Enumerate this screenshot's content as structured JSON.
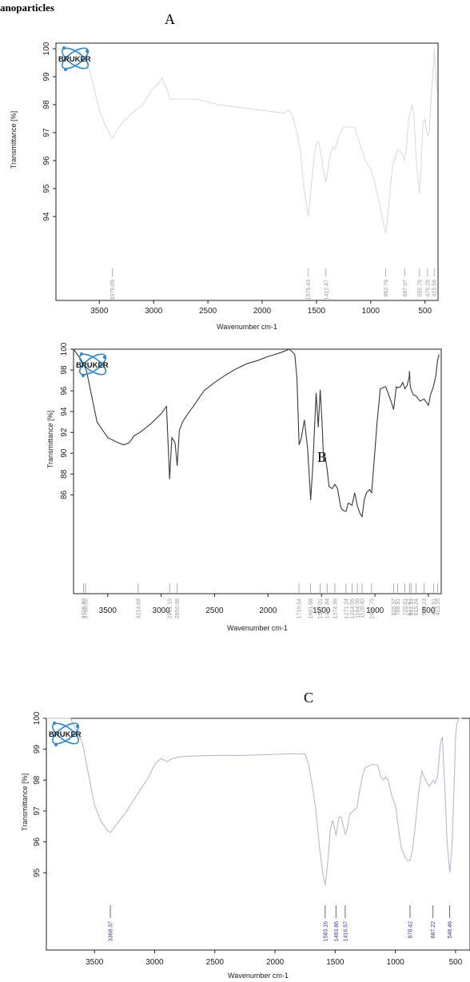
{
  "header": {
    "title": "anoparticles"
  },
  "logo": {
    "text": "BRUKER",
    "icon": "atom-icon",
    "color": "#2a8ad8"
  },
  "charts": [
    {
      "letter": "A",
      "type": "line",
      "xlabel": "Wavenumber cm-1",
      "ylabel": "Transmittance [%]",
      "xlim": [
        3900,
        380
      ],
      "ylim": [
        91,
        100.2
      ],
      "x_ticks": [
        3500,
        3000,
        2500,
        2000,
        1500,
        1000,
        500
      ],
      "y_ticks": [
        94,
        95,
        96,
        97,
        98,
        99,
        100
      ],
      "line_color": "#dcdcdc",
      "peak_color": "#9a9a9a",
      "series": [
        {
          "x": [
            3900,
            3800,
            3700,
            3600,
            3500,
            3450,
            3400,
            3379,
            3350,
            3300,
            3200,
            3100,
            3000,
            2950,
            2920,
            2900,
            2880,
            2850,
            2800,
            2700,
            2600,
            2500,
            2400,
            2300,
            2200,
            2100,
            2000,
            1900,
            1800,
            1750,
            1720,
            1700,
            1680,
            1650,
            1620,
            1600,
            1575,
            1550,
            1520,
            1500,
            1480,
            1450,
            1430,
            1412,
            1400,
            1380,
            1350,
            1330,
            1300,
            1280,
            1250,
            1200,
            1150,
            1100,
            1050,
            1000,
            950,
            900,
            880,
            863,
            850,
            820,
            800,
            750,
            720,
            700,
            687,
            670,
            650,
            620,
            600,
            580,
            560,
            550,
            540,
            520,
            500,
            490,
            476,
            460,
            440,
            420,
            415,
            400,
            390
          ],
          "y": [
            100,
            100,
            100,
            99.4,
            97.8,
            97.3,
            96.9,
            96.8,
            97.0,
            97.3,
            97.7,
            98.0,
            98.6,
            98.8,
            98.95,
            98.7,
            98.6,
            98.2,
            98.2,
            98.2,
            98.2,
            98.1,
            98.0,
            97.95,
            97.9,
            97.85,
            97.8,
            97.75,
            97.7,
            97.8,
            97.6,
            97.3,
            97.0,
            96.4,
            95.2,
            94.6,
            94.0,
            95.0,
            96.2,
            96.6,
            96.7,
            96.0,
            95.5,
            95.25,
            95.5,
            96.1,
            96.5,
            96.4,
            96.8,
            97.0,
            97.2,
            97.2,
            97.2,
            96.6,
            96.0,
            95.7,
            95.0,
            94.1,
            93.7,
            93.4,
            93.8,
            95.0,
            95.8,
            96.4,
            96.3,
            96.2,
            96.0,
            96.5,
            97.5,
            98.0,
            97.5,
            96.0,
            95.2,
            94.8,
            95.5,
            97.3,
            97.5,
            97.2,
            96.9,
            97.0,
            98.5,
            99.5,
            100.0,
            99.0,
            98.5
          ]
        }
      ],
      "peaks": [
        3379.09,
        1575.43,
        1412.47,
        862.78,
        687.07,
        550.75,
        476.28,
        415.56
      ],
      "peak_labels": [
        "3379.09",
        "1575.43",
        "1412.47",
        "862.78",
        "687.07",
        "550.75",
        "476.28",
        "415.56"
      ]
    },
    {
      "letter": "B",
      "type": "line",
      "xlabel": "Wavenumber cm-1",
      "ylabel": "Transmittance [%]",
      "xlim": [
        3820,
        380
      ],
      "ylim": [
        76.5,
        100
      ],
      "x_ticks": [
        3500,
        3000,
        2500,
        2000,
        1500,
        1000,
        500
      ],
      "y_ticks": [
        86,
        88,
        90,
        92,
        94,
        96,
        98,
        100
      ],
      "line_color": "#3a3a3a",
      "peak_color": "#9a9a9a",
      "series": [
        {
          "x": [
            3820,
            3750,
            3700,
            3650,
            3600,
            3500,
            3400,
            3350,
            3300,
            3250,
            3200,
            3100,
            3000,
            2950,
            2921,
            2900,
            2870,
            2850,
            2830,
            2800,
            2750,
            2700,
            2600,
            2500,
            2400,
            2300,
            2200,
            2100,
            2000,
            1900,
            1800,
            1750,
            1730,
            1710,
            1690,
            1660,
            1630,
            1601,
            1580,
            1550,
            1530,
            1512,
            1495,
            1480,
            1465,
            1448,
            1430,
            1400,
            1375,
            1350,
            1320,
            1300,
            1271,
            1250,
            1214,
            1190,
            1164,
            1140,
            1120,
            1100,
            1080,
            1050,
            1031,
            1010,
            980,
            950,
            900,
            850,
            826,
            800,
            789,
            760,
            740,
            720,
            700,
            680,
            677,
            670,
            662,
            640,
            615,
            580,
            540,
            520,
            500,
            480,
            450,
            430,
            413,
            400
          ],
          "y": [
            100,
            99,
            98,
            95.5,
            93,
            91.5,
            91,
            90.8,
            91,
            91.7,
            92,
            92.8,
            93.8,
            94.5,
            87.5,
            91.5,
            91,
            88.8,
            92.2,
            93,
            93.8,
            94.5,
            96,
            96.8,
            97.5,
            98.1,
            98.6,
            98.9,
            99.3,
            99.6,
            100,
            99.5,
            97.2,
            90.8,
            91.4,
            93.2,
            90.5,
            85.5,
            89,
            95.8,
            92.5,
            96.1,
            93,
            89.2,
            89.6,
            88.5,
            86.8,
            86.6,
            87,
            86.6,
            84.8,
            84.5,
            84.4,
            85.2,
            85,
            86.2,
            84.9,
            84.2,
            83.9,
            85.5,
            86.2,
            86.5,
            86.2,
            89,
            93,
            96.2,
            96.4,
            95,
            94.2,
            96.4,
            96.3,
            96.4,
            96.8,
            96.2,
            96.5,
            97.3,
            97.9,
            96.5,
            96.1,
            95.6,
            95.5,
            95,
            95.2,
            94.9,
            94.6,
            95.6,
            96.5,
            97.5,
            99,
            99.5
          ]
        }
      ],
      "peaks": [
        3726.8,
        3708.02,
        3214.68,
        2921.19,
        2850.08,
        1710.54,
        1601.68,
        1512.01,
        1447.84,
        1374.99,
        1271.24,
        1214.05,
        1164.08,
        1120.4,
        1031.75,
        826.37,
        788.91,
        720.01,
        677.67,
        662.13,
        615.24,
        540.23,
        449.91,
        413.16
      ],
      "peak_labels": [
        "3726.80",
        "3708.02",
        "3214.68",
        "2921.19",
        "2850.08",
        "1710.54",
        "1601.68",
        "1512.01",
        "1447.84",
        "1374.99",
        "1271.24",
        "1214.05",
        "1164.08",
        "1120.40",
        "1031.75",
        "826.37",
        "788.91",
        "720.01",
        "677.67",
        "662.13",
        "615.24",
        "540.23",
        "449.91",
        "413.16"
      ]
    },
    {
      "letter": "C",
      "type": "line",
      "xlabel": "Wavenumber cm-1",
      "ylabel": "Transmittance [%]",
      "xlim": [
        3900,
        380
      ],
      "ylim": [
        92.5,
        100
      ],
      "x_ticks": [
        3500,
        3000,
        2500,
        2000,
        1500,
        1000,
        500
      ],
      "y_ticks": [
        95,
        96,
        97,
        98,
        99,
        100
      ],
      "line_color": "#b8b8d8",
      "peak_color": "#3a3aa0",
      "series": [
        {
          "x": [
            3900,
            3800,
            3700,
            3600,
            3500,
            3450,
            3400,
            3368,
            3330,
            3250,
            3150,
            3050,
            3000,
            2950,
            2900,
            2850,
            2800,
            2700,
            2500,
            2300,
            2100,
            1900,
            1800,
            1750,
            1720,
            1690,
            1660,
            1630,
            1600,
            1583,
            1565,
            1540,
            1520,
            1493,
            1470,
            1450,
            1416,
            1400,
            1380,
            1350,
            1320,
            1300,
            1270,
            1250,
            1200,
            1150,
            1120,
            1100,
            1080,
            1060,
            1030,
            1000,
            970,
            950,
            920,
            900,
            878,
            860,
            840,
            810,
            780,
            750,
            720,
            700,
            687,
            670,
            650,
            625,
            610,
            590,
            570,
            548,
            530,
            510,
            500,
            490,
            470,
            450
          ],
          "y": [
            100,
            100,
            100,
            99.2,
            97.2,
            96.7,
            96.4,
            96.3,
            96.5,
            96.9,
            97.5,
            98.1,
            98.5,
            98.7,
            98.6,
            98.7,
            98.75,
            98.78,
            98.8,
            98.8,
            98.82,
            98.85,
            98.85,
            98.85,
            98.5,
            97.8,
            97.0,
            95.8,
            94.9,
            94.6,
            95.2,
            96.4,
            96.7,
            96.2,
            96.8,
            96.8,
            96.25,
            96.4,
            96.9,
            97.0,
            97.1,
            97.6,
            98.2,
            98.4,
            98.5,
            98.5,
            98.1,
            98.0,
            98.1,
            98.0,
            97.5,
            97.2,
            96.3,
            95.8,
            95.5,
            95.4,
            95.4,
            95.7,
            96.3,
            97.5,
            98.3,
            98.0,
            97.8,
            97.9,
            98.0,
            97.9,
            98.1,
            99.2,
            99.4,
            97.8,
            96.0,
            95.0,
            95.8,
            98.0,
            99.4,
            99.8,
            100,
            100
          ]
        }
      ],
      "peaks": [
        3368.37,
        1583.16,
        1493.86,
        1416.57,
        878.42,
        687.22,
        548.46
      ],
      "peak_labels": [
        "3368.37",
        "1583.16",
        "1493.86",
        "1416.57",
        "878.42",
        "687.22",
        "548.46"
      ]
    }
  ]
}
